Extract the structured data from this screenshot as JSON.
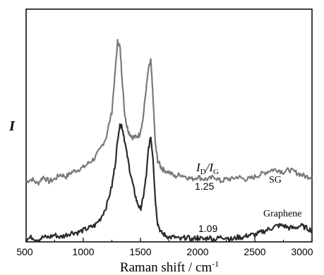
{
  "chart_data": {
    "type": "line",
    "xlabel": "Raman shift / cm",
    "xlabel_sup": "-1",
    "ylabel": "I",
    "xlim": [
      500,
      3000
    ],
    "ylim": [
      0,
      1
    ],
    "x_ticks": [
      500,
      1000,
      1500,
      2000,
      2500,
      3000
    ],
    "y_ticks_shown": false,
    "grid": false,
    "legend": "none",
    "series": [
      {
        "name": "SG",
        "color": "#7a7a7a",
        "x": [
          500,
          550,
          600,
          650,
          700,
          750,
          800,
          850,
          900,
          950,
          1000,
          1050,
          1100,
          1150,
          1200,
          1250,
          1280,
          1300,
          1320,
          1340,
          1360,
          1380,
          1400,
          1430,
          1460,
          1490,
          1520,
          1550,
          1570,
          1590,
          1610,
          1630,
          1650,
          1680,
          1700,
          1750,
          1800,
          1850,
          1900,
          1950,
          2000,
          2050,
          2100,
          2150,
          2200,
          2250,
          2300,
          2350,
          2400,
          2450,
          2500,
          2550,
          2600,
          2650,
          2700,
          2750,
          2800,
          2850,
          2900,
          2950,
          3000
        ],
        "values": [
          0.26,
          0.27,
          0.25,
          0.28,
          0.26,
          0.27,
          0.29,
          0.28,
          0.3,
          0.31,
          0.32,
          0.34,
          0.36,
          0.4,
          0.45,
          0.56,
          0.74,
          0.86,
          0.84,
          0.7,
          0.56,
          0.5,
          0.47,
          0.45,
          0.45,
          0.46,
          0.52,
          0.66,
          0.74,
          0.78,
          0.62,
          0.42,
          0.35,
          0.32,
          0.31,
          0.3,
          0.28,
          0.29,
          0.28,
          0.27,
          0.28,
          0.27,
          0.27,
          0.28,
          0.26,
          0.27,
          0.27,
          0.28,
          0.27,
          0.27,
          0.28,
          0.29,
          0.3,
          0.31,
          0.31,
          0.3,
          0.31,
          0.3,
          0.29,
          0.28,
          0.28
        ]
      },
      {
        "name": "Graphene",
        "color": "#2a2a2a",
        "x": [
          500,
          550,
          600,
          650,
          700,
          750,
          800,
          850,
          900,
          950,
          1000,
          1050,
          1100,
          1150,
          1200,
          1250,
          1280,
          1310,
          1330,
          1350,
          1380,
          1410,
          1440,
          1470,
          1500,
          1520,
          1550,
          1570,
          1590,
          1610,
          1630,
          1650,
          1680,
          1710,
          1750,
          1800,
          1850,
          1900,
          1950,
          2000,
          2050,
          2100,
          2150,
          2200,
          2250,
          2300,
          2350,
          2400,
          2450,
          2500,
          2550,
          2600,
          2650,
          2700,
          2750,
          2800,
          2850,
          2900,
          2950,
          3000
        ],
        "values": [
          0.01,
          0.02,
          0.01,
          0.02,
          0.02,
          0.03,
          0.02,
          0.03,
          0.04,
          0.04,
          0.05,
          0.06,
          0.07,
          0.1,
          0.15,
          0.24,
          0.34,
          0.48,
          0.51,
          0.47,
          0.38,
          0.3,
          0.23,
          0.17,
          0.14,
          0.18,
          0.28,
          0.4,
          0.45,
          0.36,
          0.18,
          0.08,
          0.04,
          0.03,
          0.02,
          0.02,
          0.01,
          0.02,
          0.01,
          0.02,
          0.01,
          0.02,
          0.01,
          0.02,
          0.02,
          0.01,
          0.02,
          0.02,
          0.03,
          0.03,
          0.04,
          0.05,
          0.06,
          0.07,
          0.07,
          0.06,
          0.06,
          0.07,
          0.06,
          0.05
        ]
      }
    ],
    "annotations": {
      "ratio_label_main": "I",
      "ratio_label_sub1": "D",
      "ratio_label_sep": "/",
      "ratio_label_main2": "I",
      "ratio_label_sub2": "G",
      "sg_ratio": "1.25",
      "graphene_ratio": "1.09"
    }
  }
}
